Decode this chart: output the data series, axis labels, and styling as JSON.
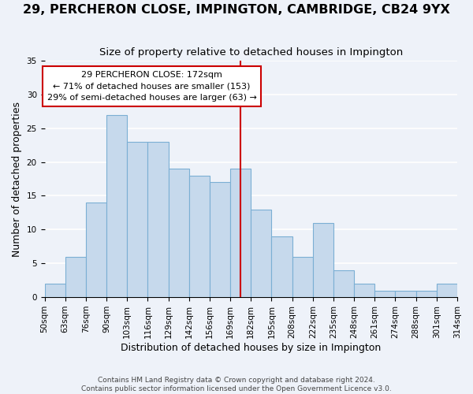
{
  "title": "29, PERCHERON CLOSE, IMPINGTON, CAMBRIDGE, CB24 9YX",
  "subtitle": "Size of property relative to detached houses in Impington",
  "xlabel": "Distribution of detached houses by size in Impington",
  "ylabel": "Number of detached properties",
  "tick_labels": [
    "50sqm",
    "63sqm",
    "76sqm",
    "90sqm",
    "103sqm",
    "116sqm",
    "129sqm",
    "142sqm",
    "156sqm",
    "169sqm",
    "182sqm",
    "195sqm",
    "208sqm",
    "222sqm",
    "235sqm",
    "248sqm",
    "261sqm",
    "274sqm",
    "288sqm",
    "301sqm",
    "314sqm"
  ],
  "bar_values": [
    2,
    6,
    14,
    27,
    23,
    23,
    19,
    18,
    17,
    19,
    13,
    9,
    6,
    11,
    4,
    2,
    1,
    1,
    1,
    2
  ],
  "bar_color": "#c6d9ec",
  "bar_edge_color": "#7bafd4",
  "vline_x": 9.5,
  "vline_color": "#cc0000",
  "annotation_title": "29 PERCHERON CLOSE: 172sqm",
  "annotation_line1": "← 71% of detached houses are smaller (153)",
  "annotation_line2": "29% of semi-detached houses are larger (63) →",
  "annotation_box_facecolor": "#ffffff",
  "annotation_box_edgecolor": "#cc0000",
  "ylim": [
    0,
    35
  ],
  "yticks": [
    0,
    5,
    10,
    15,
    20,
    25,
    30,
    35
  ],
  "footer1": "Contains HM Land Registry data © Crown copyright and database right 2024.",
  "footer2": "Contains public sector information licensed under the Open Government Licence v3.0.",
  "bg_color": "#eef2f9",
  "title_fontsize": 11.5,
  "subtitle_fontsize": 9.5,
  "axis_label_fontsize": 9,
  "tick_fontsize": 7.5,
  "annot_fontsize": 8,
  "footer_fontsize": 6.5
}
